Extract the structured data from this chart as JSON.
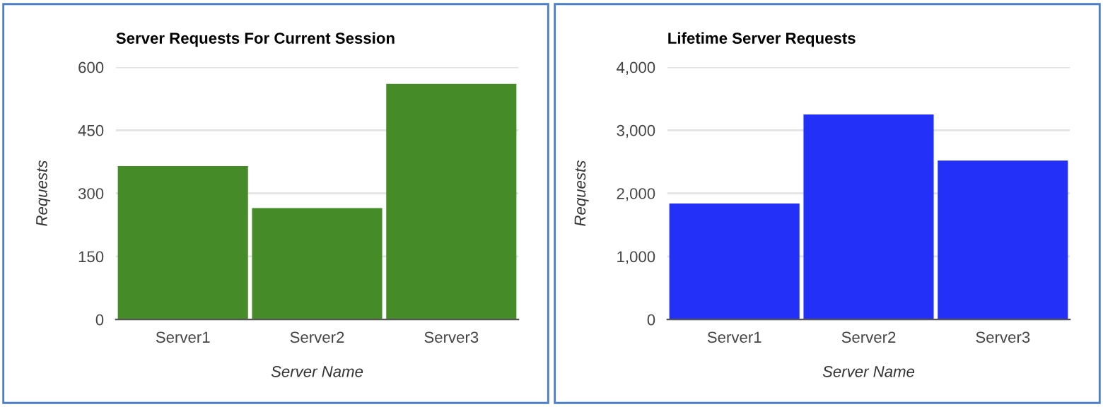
{
  "chart_data": [
    {
      "type": "bar",
      "title": "Server Requests For Current Session",
      "xlabel": "Server Name",
      "ylabel": "Requests",
      "categories": [
        "Server1",
        "Server2",
        "Server3"
      ],
      "values": [
        365,
        265,
        560
      ],
      "color": "#458b27",
      "ylim": [
        0,
        600
      ],
      "yticks": [
        0,
        150,
        300,
        450,
        600
      ],
      "grid": "y",
      "legend": false
    },
    {
      "type": "bar",
      "title": "Lifetime Server Requests",
      "xlabel": "Server Name",
      "ylabel": "Requests",
      "categories": [
        "Server1",
        "Server2",
        "Server3"
      ],
      "values": [
        1840,
        3250,
        2520
      ],
      "color": "#2230f8",
      "ylim": [
        0,
        4000
      ],
      "yticks": [
        {
          "value": 0,
          "label": "0"
        },
        {
          "value": 1000,
          "label": "1,000"
        },
        {
          "value": 2000,
          "label": "2,000"
        },
        {
          "value": 3000,
          "label": "3,000"
        },
        {
          "value": 4000,
          "label": "4,000"
        }
      ],
      "grid": "y",
      "legend": false
    }
  ]
}
